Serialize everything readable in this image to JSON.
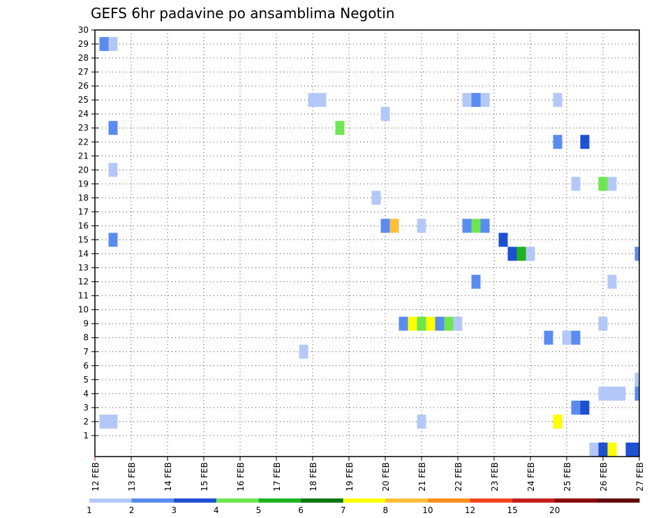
{
  "chart_data": {
    "type": "heatmap",
    "title": "GEFS 6hr padavine po ansamblima Negotin",
    "xlabel": "",
    "ylabel": "",
    "x_ticks": [
      "12 FEB",
      "13 FEB",
      "14 FEB",
      "15 FEB",
      "16 FEB",
      "17 FEB",
      "18 FEB",
      "19 FEB",
      "20 FEB",
      "21 FEB",
      "22 FEB",
      "23 FEB",
      "24 FEB",
      "25 FEB",
      "26 FEB",
      "27 FEB"
    ],
    "y_ticks": [
      "1",
      "2",
      "3",
      "4",
      "5",
      "6",
      "7",
      "8",
      "9",
      "10",
      "11",
      "12",
      "13",
      "14",
      "15",
      "16",
      "17",
      "18",
      "19",
      "20",
      "21",
      "22",
      "23",
      "24",
      "25",
      "26",
      "27",
      "28",
      "29",
      "30"
    ],
    "xlim_days": [
      0,
      15
    ],
    "ylim": [
      0,
      30
    ],
    "grid": true,
    "colorbar": {
      "position": "bottom",
      "colors": [
        "#b4c8f8",
        "#5a8cf0",
        "#1e50d2",
        "#6ee650",
        "#1eb41e",
        "#0a7814",
        "#ffff00",
        "#ffbe3c",
        "#ff8c1e",
        "#f0461e",
        "#c31e1e",
        "#8c0a0a",
        "#640505"
      ],
      "labels": [
        "1",
        "2",
        "3",
        "4",
        "5",
        "6",
        "7",
        "8",
        "10",
        "12",
        "15",
        "20"
      ]
    },
    "values": [
      {
        "x": 0.25,
        "y": 29,
        "c": 2
      },
      {
        "x": 0.5,
        "y": 29,
        "c": 1
      },
      {
        "x": 0.5,
        "y": 23,
        "c": 2
      },
      {
        "x": 0.5,
        "y": 20,
        "c": 1
      },
      {
        "x": 0.5,
        "y": 15,
        "c": 2
      },
      {
        "x": 0.25,
        "y": 2,
        "c": 1
      },
      {
        "x": 0.5,
        "y": 2,
        "c": 1
      },
      {
        "x": 6.0,
        "y": 25,
        "c": 1
      },
      {
        "x": 6.25,
        "y": 25,
        "c": 1
      },
      {
        "x": 5.75,
        "y": 7,
        "c": 1
      },
      {
        "x": 6.75,
        "y": 23,
        "c": 4
      },
      {
        "x": 8.0,
        "y": 24,
        "c": 1
      },
      {
        "x": 7.75,
        "y": 18,
        "c": 1
      },
      {
        "x": 8.0,
        "y": 16,
        "c": 2
      },
      {
        "x": 8.25,
        "y": 16,
        "c": 8
      },
      {
        "x": 9.0,
        "y": 16,
        "c": 1
      },
      {
        "x": 9.0,
        "y": 2,
        "c": 1
      },
      {
        "x": 8.5,
        "y": 9,
        "c": 2
      },
      {
        "x": 8.75,
        "y": 9,
        "c": 7
      },
      {
        "x": 9.0,
        "y": 9,
        "c": 4
      },
      {
        "x": 9.25,
        "y": 9,
        "c": 7
      },
      {
        "x": 9.5,
        "y": 9,
        "c": 2
      },
      {
        "x": 9.75,
        "y": 9,
        "c": 4
      },
      {
        "x": 10.0,
        "y": 9,
        "c": 1
      },
      {
        "x": 10.25,
        "y": 25,
        "c": 1
      },
      {
        "x": 10.5,
        "y": 25,
        "c": 2
      },
      {
        "x": 10.75,
        "y": 25,
        "c": 1
      },
      {
        "x": 10.25,
        "y": 16,
        "c": 2
      },
      {
        "x": 10.5,
        "y": 16,
        "c": 4
      },
      {
        "x": 10.75,
        "y": 16,
        "c": 2
      },
      {
        "x": 10.5,
        "y": 12,
        "c": 2
      },
      {
        "x": 11.25,
        "y": 15,
        "c": 3
      },
      {
        "x": 11.5,
        "y": 14,
        "c": 3
      },
      {
        "x": 11.75,
        "y": 14,
        "c": 5
      },
      {
        "x": 12.0,
        "y": 14,
        "c": 1
      },
      {
        "x": 12.5,
        "y": 8,
        "c": 2
      },
      {
        "x": 12.75,
        "y": 25,
        "c": 1
      },
      {
        "x": 12.75,
        "y": 22,
        "c": 2
      },
      {
        "x": 12.75,
        "y": 2,
        "c": 7
      },
      {
        "x": 13.0,
        "y": 8,
        "c": 1
      },
      {
        "x": 13.25,
        "y": 8,
        "c": 2
      },
      {
        "x": 13.25,
        "y": 19,
        "c": 1
      },
      {
        "x": 13.25,
        "y": 3,
        "c": 2
      },
      {
        "x": 13.5,
        "y": 3,
        "c": 3
      },
      {
        "x": 13.5,
        "y": 22,
        "c": 3
      },
      {
        "x": 13.75,
        "y": 0,
        "c": 1
      },
      {
        "x": 14.0,
        "y": 19,
        "c": 4
      },
      {
        "x": 14.25,
        "y": 19,
        "c": 1
      },
      {
        "x": 14.0,
        "y": 9,
        "c": 1
      },
      {
        "x": 14.25,
        "y": 12,
        "c": 1
      },
      {
        "x": 14.0,
        "y": 4,
        "c": 1
      },
      {
        "x": 14.25,
        "y": 4,
        "c": 1
      },
      {
        "x": 14.5,
        "y": 4,
        "c": 1
      },
      {
        "x": 14.0,
        "y": 0,
        "c": 3
      },
      {
        "x": 14.25,
        "y": 0,
        "c": 7
      },
      {
        "x": 14.75,
        "y": 0,
        "c": 3
      },
      {
        "x": 15.0,
        "y": 14,
        "c": 2
      },
      {
        "x": 15.0,
        "y": 5,
        "c": 1
      },
      {
        "x": 15.0,
        "y": 4,
        "c": 2
      },
      {
        "x": 15.0,
        "y": 0,
        "c": 3
      }
    ]
  }
}
